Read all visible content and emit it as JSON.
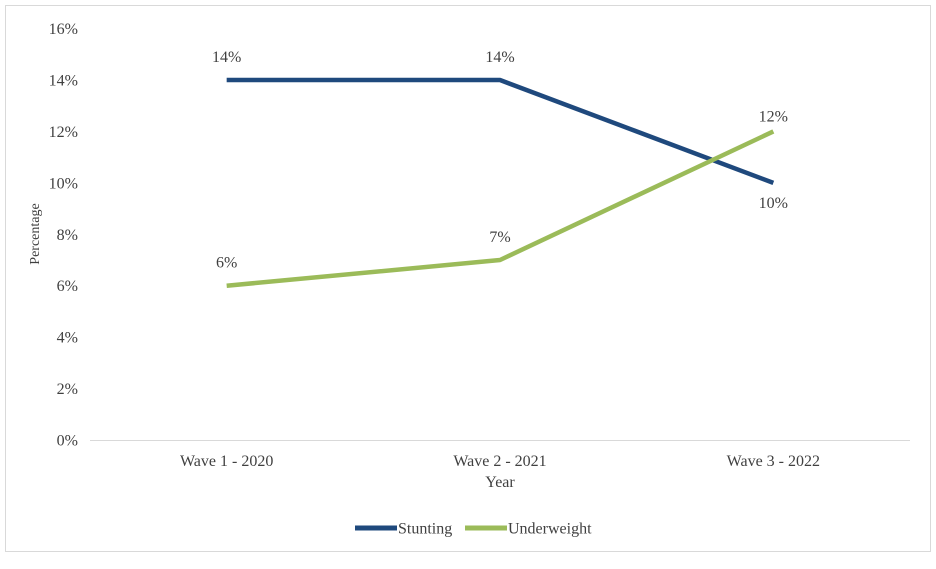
{
  "chart_data": {
    "type": "line",
    "title": "",
    "xlabel": "Year",
    "ylabel": "Percentage",
    "categories": [
      "Wave 1 - 2020",
      "Wave 2 - 2021",
      "Wave 3 - 2022"
    ],
    "series": [
      {
        "name": "Stunting",
        "values": [
          14,
          14,
          10
        ],
        "label_texts": [
          "14%",
          "14%",
          "10%"
        ],
        "label_positions": [
          "above",
          "above",
          "below"
        ],
        "color": "#1F497D"
      },
      {
        "name": "Underweight",
        "values": [
          6,
          7,
          12
        ],
        "label_texts": [
          "6%",
          "7%",
          "12%"
        ],
        "label_positions": [
          "above",
          "above",
          "near-above"
        ],
        "color": "#9BBB59"
      }
    ],
    "ylim": [
      0,
      16
    ],
    "ytick_step": 2,
    "ytick_labels": [
      "0%",
      "2%",
      "4%",
      "6%",
      "8%",
      "10%",
      "12%",
      "14%",
      "16%"
    ],
    "grid": false,
    "legend_position": "bottom-center"
  },
  "colors": {
    "text": "#404040",
    "axis_line": "#D9D9D9",
    "frame_border": "#D9D9D9",
    "background": "#FFFFFF"
  }
}
